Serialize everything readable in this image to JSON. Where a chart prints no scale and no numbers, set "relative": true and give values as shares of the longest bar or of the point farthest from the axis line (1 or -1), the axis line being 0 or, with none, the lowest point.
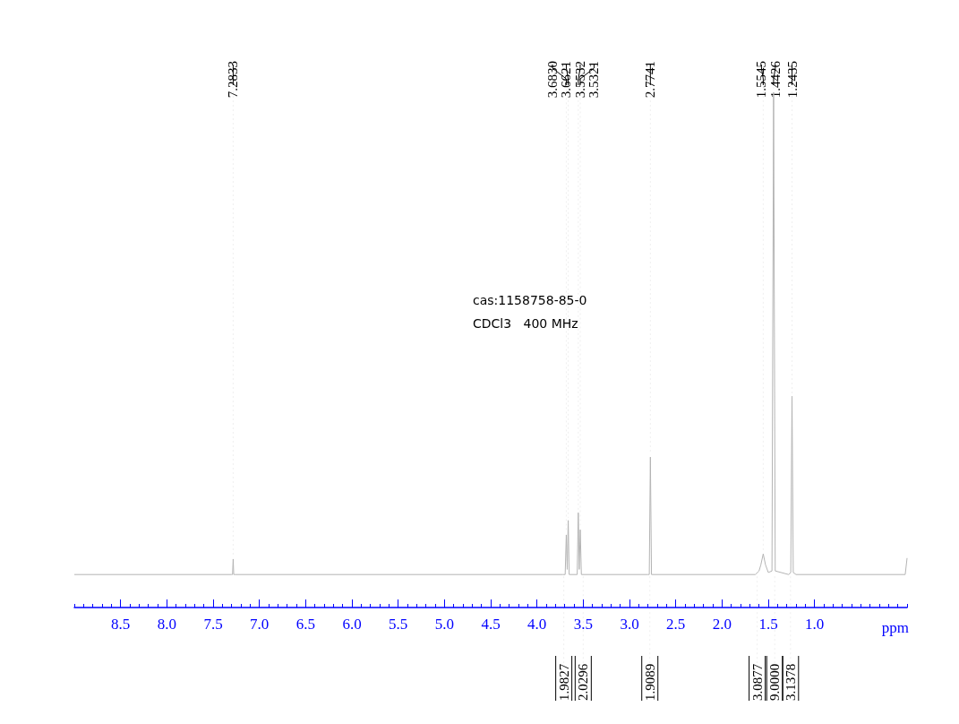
{
  "chart_data": {
    "type": "line",
    "relative": true,
    "xlabel": "ppm",
    "xlim": [
      9.0,
      0.0
    ],
    "xticks": [
      8.5,
      {
        "value": 8,
        "label": "8.0"
      },
      7.5,
      {
        "value": 7,
        "label": "7.0"
      },
      6.5,
      {
        "value": 6,
        "label": "6.0"
      },
      5.5,
      {
        "value": 5,
        "label": "5.0"
      },
      4.5,
      {
        "value": 4,
        "label": "4.0"
      },
      3.5,
      {
        "value": 3,
        "label": "3.0"
      },
      2.5,
      {
        "value": 2,
        "label": "2.0"
      },
      1.5,
      {
        "value": 1,
        "label": "1.0"
      }
    ],
    "x": [
      9.0,
      7.3,
      7.29,
      7.2833,
      7.277,
      7.26,
      3.72,
      3.695,
      3.683,
      3.673,
      3.6621,
      3.652,
      3.565,
      3.5532,
      3.543,
      3.5321,
      3.52,
      2.8,
      2.786,
      2.7741,
      2.762,
      1.64,
      1.6,
      1.58,
      1.5545,
      1.53,
      1.5,
      1.46,
      1.4426,
      1.425,
      1.28,
      1.257,
      1.2435,
      1.23,
      1.2,
      0.02,
      0.0
    ],
    "series": [
      {
        "color": "#b4b4b4",
        "values": [
          0.064,
          0.064,
          0.064,
          0.094,
          0.064,
          0.064,
          0.064,
          0.064,
          0.141,
          0.074,
          0.169,
          0.064,
          0.064,
          0.184,
          0.074,
          0.151,
          0.064,
          0.064,
          0.064,
          0.292,
          0.064,
          0.064,
          0.071,
          0.083,
          0.104,
          0.083,
          0.068,
          0.071,
          1,
          0.071,
          0.064,
          0.068,
          0.41,
          0.068,
          0.064,
          0.064,
          0.096
        ]
      }
    ],
    "annotations": [
      "cas:1158758-85-0",
      "CDCl3   400 MHz",
      {
        "text": "7.2833",
        "x": 7.2833,
        "y": 0.094
      },
      {
        "text": "3.6830",
        "x": 3.683,
        "y": 0.141
      },
      {
        "text": "3.6621",
        "x": 3.6621,
        "y": 0.169
      },
      {
        "text": "3.5532",
        "x": 3.5532,
        "y": 0.184
      },
      {
        "text": "3.5321",
        "x": 3.5321,
        "y": 0.151
      },
      {
        "text": "2.7741",
        "x": 2.7741,
        "y": 0.292
      },
      {
        "text": "1.5545",
        "x": 1.5545,
        "y": 0.104
      },
      {
        "text": "1.4426",
        "x": 1.4426,
        "y": 1
      },
      {
        "text": "1.2435",
        "x": 1.2435,
        "y": 0.41
      },
      {
        "text": "1.9827",
        "x": 3.71,
        "y": 0.064
      },
      {
        "text": "2.0296",
        "x": 3.5,
        "y": 0.064
      },
      {
        "text": "1.9089",
        "x": 2.78,
        "y": 0.064
      },
      {
        "text": "3.0877",
        "x": 1.62,
        "y": 0.064
      },
      {
        "text": "9.0000",
        "x": 1.43,
        "y": 0.064
      },
      {
        "text": "3.1378",
        "x": 1.26,
        "y": 0.064
      }
    ],
    "grid": false,
    "marker": "none",
    "line_style": "solid"
  }
}
